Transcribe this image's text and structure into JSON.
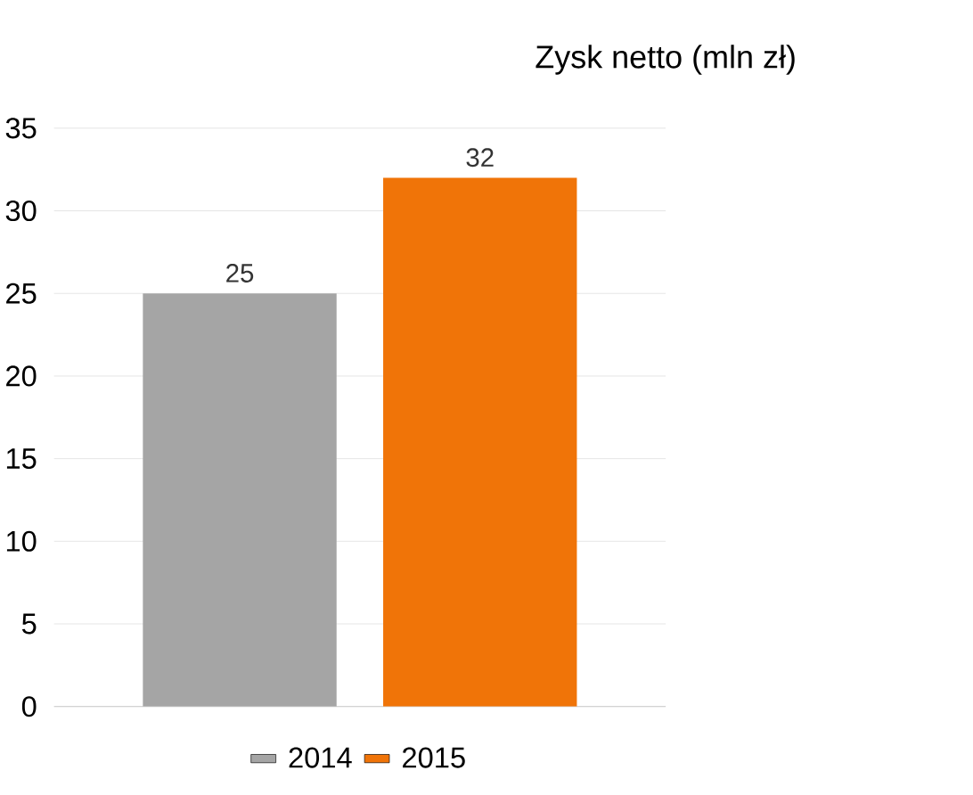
{
  "chart_data": {
    "type": "bar",
    "title": "Zysk netto (mln zł)",
    "categories": [
      null
    ],
    "series": [
      {
        "name": "2014",
        "color": "#a5a5a5",
        "values": [
          25
        ]
      },
      {
        "name": "2015",
        "color": "#f07408",
        "values": [
          32
        ]
      }
    ],
    "ylim": [
      0,
      35
    ],
    "yticks": [
      0,
      5,
      10,
      15,
      20,
      25,
      30,
      35
    ],
    "grid": "y",
    "legend": "bottom",
    "data_labels": true
  }
}
